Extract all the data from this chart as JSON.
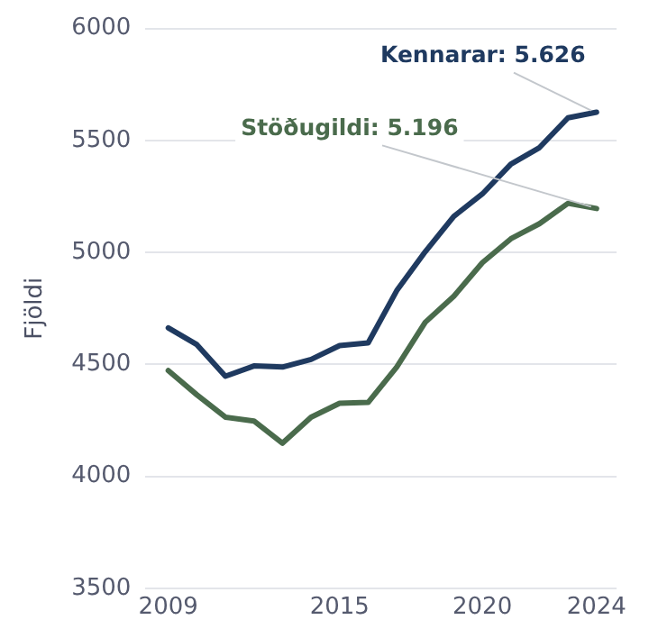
{
  "chart_data": {
    "type": "line",
    "ylabel": "Fjöldi",
    "x": [
      2009,
      2010,
      2011,
      2012,
      2013,
      2014,
      2015,
      2016,
      2017,
      2018,
      2019,
      2020,
      2021,
      2022,
      2023,
      2024
    ],
    "series": [
      {
        "color": "#1f3a60",
        "values": [
          4663,
          4588,
          4447,
          4493,
          4488,
          4522,
          4584,
          4596,
          4829,
          5003,
          5161,
          5261,
          5394,
          5468,
          5601,
          5626
        ]
      },
      {
        "color": "#4a6b4c",
        "values": [
          4472,
          4364,
          4264,
          4247,
          4148,
          4264,
          4326,
          4330,
          4488,
          4688,
          4804,
          4954,
          5061,
          5128,
          5219,
          5196
        ]
      }
    ],
    "annotations": [
      {
        "text": "Kennarar: 5.626",
        "x": 2024,
        "y": 5626
      },
      {
        "text": "Stöðugildi: 5.196",
        "x": 2024,
        "y": 5196
      }
    ],
    "xlim": [
      2008.2,
      2024.7
    ],
    "xticks": [
      2009,
      2015,
      2020,
      2024
    ],
    "ylim": [
      3500,
      6000
    ],
    "yticks": [
      3500,
      4000,
      4500,
      5000,
      5500,
      6000
    ],
    "grid": "y",
    "legend": false,
    "marker": "none",
    "line_style": "solid"
  }
}
